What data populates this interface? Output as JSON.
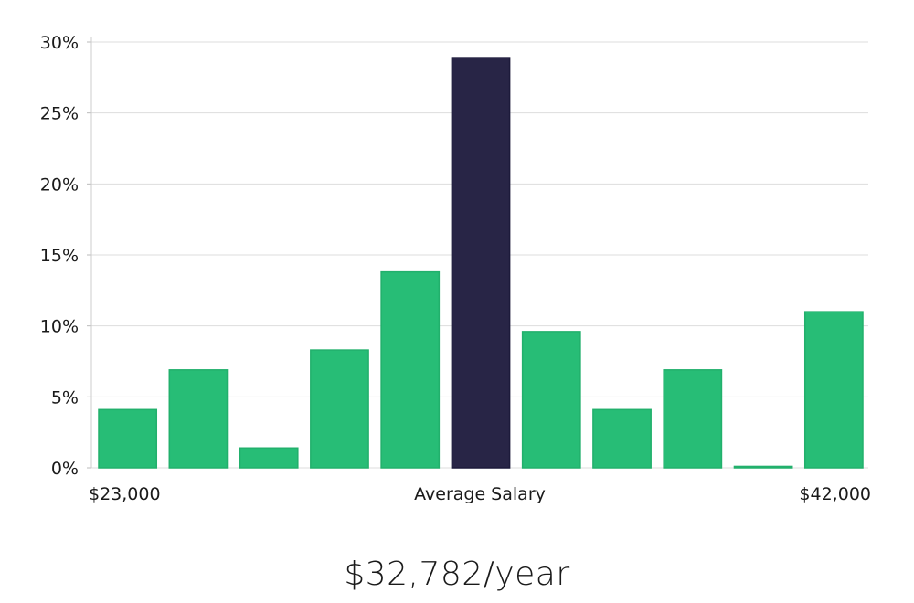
{
  "chart_data": {
    "type": "bar",
    "title": "",
    "xlabel": "Average Salary",
    "ylabel": "",
    "ylim": [
      0,
      30
    ],
    "y_ticks": [
      "0%",
      "5%",
      "10%",
      "15%",
      "20%",
      "25%",
      "30%"
    ],
    "y_tick_values": [
      0,
      5,
      10,
      15,
      20,
      25,
      30
    ],
    "x_range_labels": {
      "min": "$23,000",
      "max": "$42,000"
    },
    "values": [
      4.1,
      6.9,
      1.4,
      8.3,
      13.8,
      28.9,
      9.6,
      4.1,
      6.9,
      0.1,
      11.0
    ],
    "highlight_index": 5,
    "grid": true,
    "colors": {
      "bar": "#27bd76",
      "highlight": "#282546",
      "grid": "#dddddd"
    }
  },
  "summary": {
    "salary": "$32,782/year"
  }
}
